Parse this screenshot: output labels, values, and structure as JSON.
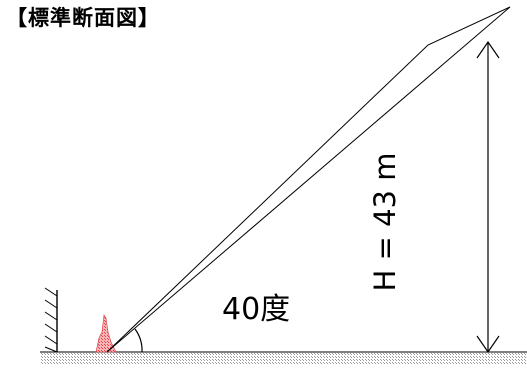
{
  "diagram": {
    "title": "【標準断面図】",
    "angle_label": "40度",
    "height_label": "H = 43 m"
  },
  "colors": {
    "line": "#000000",
    "red_hatch": "#e8424a",
    "ground_hatch": "#bdbdbd"
  }
}
